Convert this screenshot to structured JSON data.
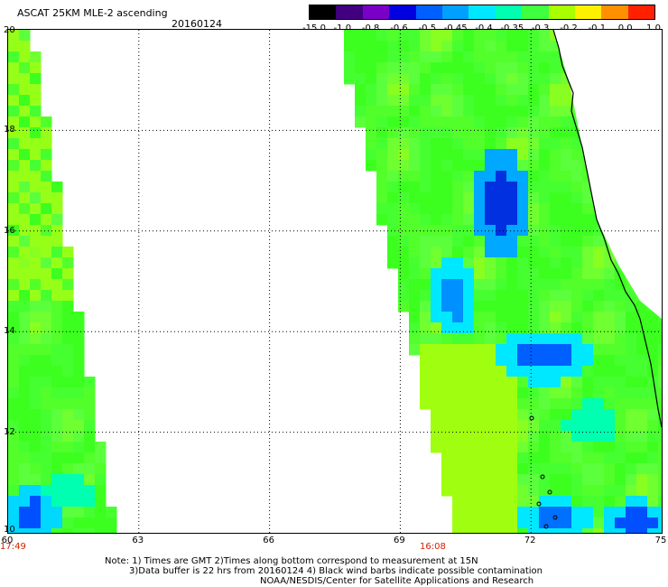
{
  "header": {
    "title": "ASCAT 25KM MLE-2 ascending",
    "date": "20160124"
  },
  "colorbar": {
    "labels": [
      "-15.0",
      "-1.0",
      "-0.8",
      "-0.6",
      "-0.5",
      "-0.45",
      "-0.4",
      "-0.35",
      "-0.3",
      "-0.2",
      "-0.1",
      "0.0",
      "1.0"
    ],
    "colors": [
      "#000000",
      "#40007f",
      "#7a00c8",
      "#0000e0",
      "#0060ff",
      "#00a0ff",
      "#00e8ff",
      "#00ffb0",
      "#40ff40",
      "#a8ff00",
      "#fff000",
      "#ff9000",
      "#ff2000"
    ]
  },
  "map": {
    "lon_labels": [
      "60",
      "63",
      "66",
      "69",
      "72",
      "75"
    ],
    "lat_labels": [
      "20",
      "18",
      "16",
      "14",
      "12",
      "10"
    ],
    "lon_range": [
      60,
      75
    ],
    "lat_range": [
      10,
      20
    ],
    "pass_times": [
      {
        "time": "17:49"
      },
      {
        "time": "16:08"
      }
    ],
    "colors": {
      "background": "#ffffff",
      "gridline": "#000000",
      "coast": "#000000",
      "time_label": "#d62000"
    }
  },
  "notes": {
    "line1": "Note: 1) Times are GMT 2)Times along bottom correspond to measurement at 15N",
    "line2": "3)Data buffer is 22 hrs from 20160124 4) Black wind barbs indicate possible contamination",
    "line3": "NOAA/NESDIS/Center for Satellite Applications and Research"
  }
}
